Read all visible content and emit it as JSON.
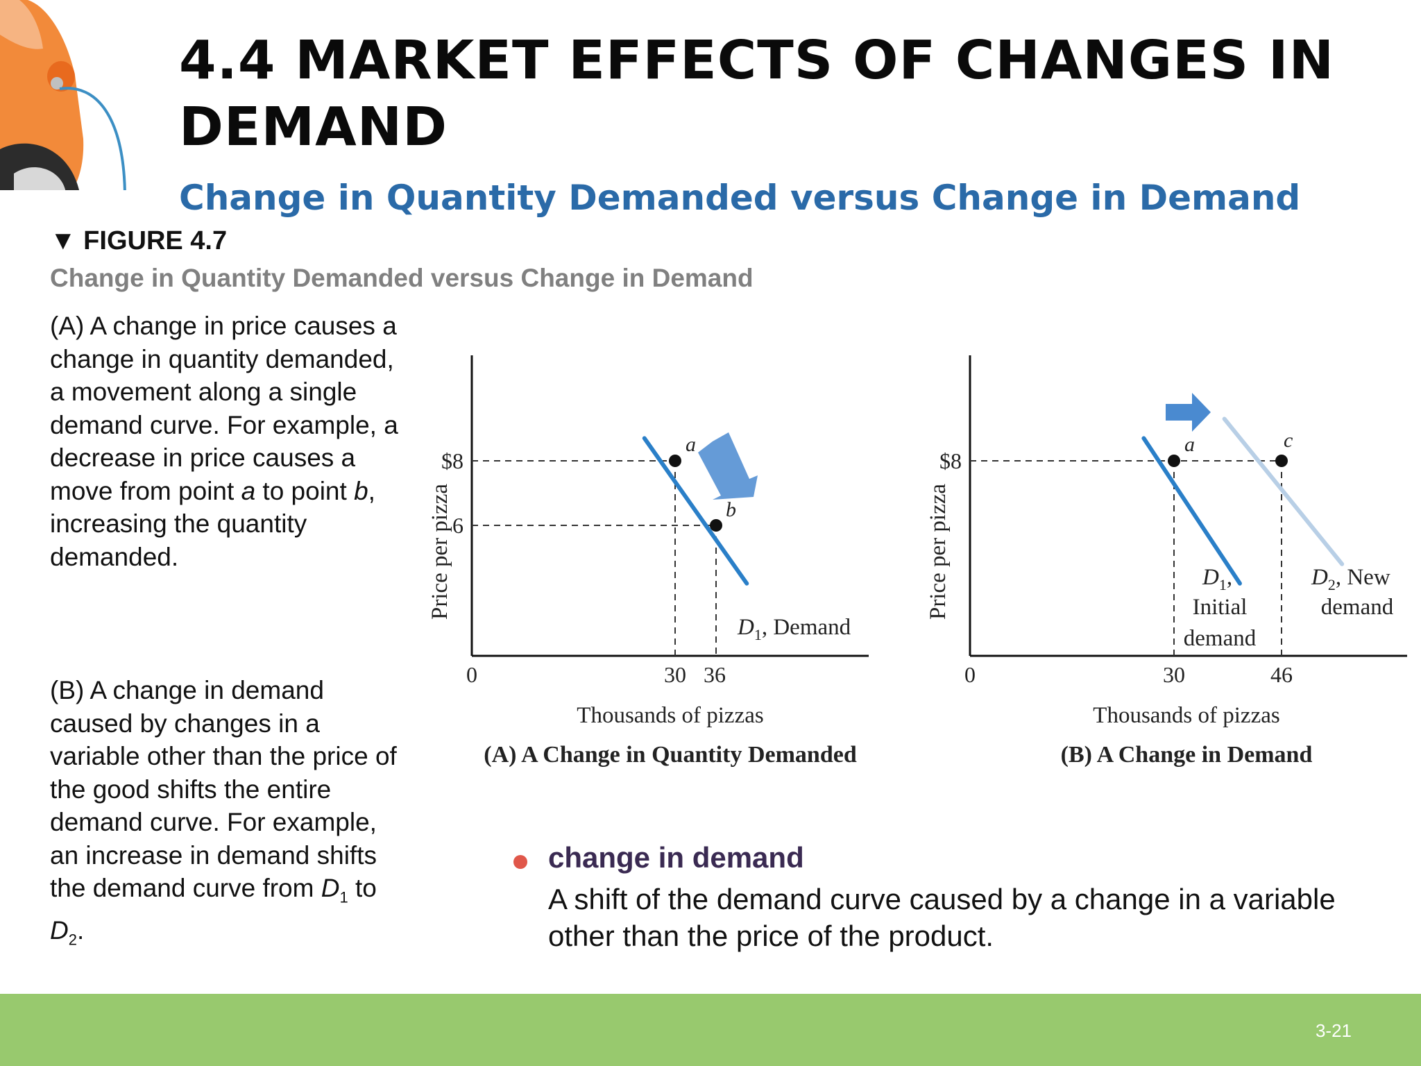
{
  "slide": {
    "title": "4.4 MARKET EFFECTS OF CHANGES IN DEMAND",
    "subtitle": "Change in Quantity Demanded versus Change in Demand",
    "figure_label": "▼ FIGURE 4.7",
    "figure_caption": "Change in Quantity Demanded versus Change in Demand",
    "page_number": "3-21"
  },
  "side_text": {
    "a_part1": "(A) A change in price causes a change in quantity demanded, a movement along a single demand curve. For example, a decrease in price causes a move from point ",
    "a_point1": "a",
    "a_part2": " to point ",
    "a_point2": "b",
    "a_part3": ", increasing the quantity demanded.",
    "b_part1": "(B) A change in demand caused by changes in a variable other than the price of the good shifts the entire demand curve. For example, an increase in demand shifts the demand curve from ",
    "b_curve1": "D",
    "b_sub1": "1",
    "b_part2": " to ",
    "b_curve2": "D",
    "b_sub2": "2",
    "b_part3": "."
  },
  "definition": {
    "term": "change in demand",
    "body": "A shift of the demand curve caused by a change in a variable other than the price of the product."
  },
  "colors": {
    "curve": "#2a7fc8",
    "curve_new": "#b8cfe6",
    "arrow": "#4a8ad0",
    "bullet": "#e0574a",
    "footer": "#98c96e",
    "subtitle": "#2a6aa8"
  },
  "chart_data": [
    {
      "type": "line",
      "title": "(A) A Change in Quantity Demanded",
      "xlabel": "Thousands of pizzas",
      "ylabel": "Price per pizza",
      "origin_label": "0",
      "x_ticks": [
        "30",
        "36"
      ],
      "y_ticks": [
        "$8",
        "6"
      ],
      "series": [
        {
          "name_main": "D",
          "name_sub": "1",
          "name_rest": ", Demand",
          "x": [
            25.5,
            40.5
          ],
          "y": [
            8.7,
            4.2
          ]
        }
      ],
      "points": [
        {
          "label": "a",
          "x": 30,
          "y": 8
        },
        {
          "label": "b",
          "x": 36,
          "y": 6
        }
      ],
      "annotation": "movement along the curve from a to b"
    },
    {
      "type": "line",
      "title": "(B) A Change in Demand",
      "xlabel": "Thousands of pizzas",
      "ylabel": "Price per pizza",
      "origin_label": "0",
      "x_ticks": [
        "30",
        "46"
      ],
      "y_ticks": [
        "$8"
      ],
      "series": [
        {
          "name_main": "D",
          "name_sub": "1",
          "name_rest": ",",
          "name_line2": "Initial",
          "name_line3": "demand",
          "x": [
            25.5,
            39.8
          ],
          "y": [
            8.7,
            4.2
          ]
        },
        {
          "name_main": "D",
          "name_sub": "2",
          "name_rest": ", New",
          "name_line2": "demand",
          "x": [
            37.5,
            55
          ],
          "y": [
            9.3,
            4.8
          ]
        }
      ],
      "points": [
        {
          "label": "a",
          "x": 30,
          "y": 8
        },
        {
          "label": "c",
          "x": 46,
          "y": 8
        }
      ],
      "annotation": "demand curve shifts right from D1 to D2"
    }
  ]
}
